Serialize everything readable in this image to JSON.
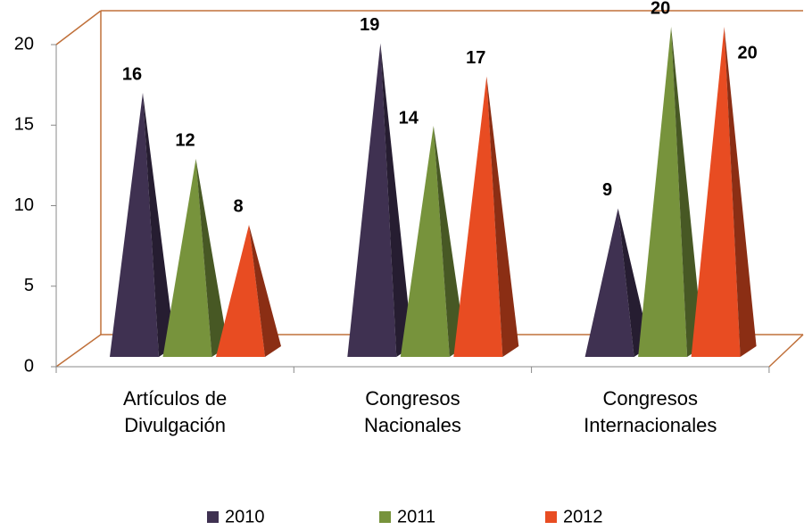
{
  "chart_data": {
    "type": "pyramid",
    "categories": [
      "Artículos de Divulgación",
      "Congresos Nacionales",
      "Congresos Internacionales"
    ],
    "series": [
      {
        "name": "2010",
        "color": "#3f3151",
        "values": [
          16,
          19,
          9
        ]
      },
      {
        "name": "2011",
        "color": "#77933c",
        "values": [
          12,
          14,
          20
        ]
      },
      {
        "name": "2012",
        "color": "#e84c22",
        "values": [
          8,
          17,
          20
        ]
      }
    ],
    "ylim": [
      0,
      20
    ],
    "yticks": [
      0,
      5,
      10,
      15,
      20
    ],
    "legend": "bottom"
  }
}
